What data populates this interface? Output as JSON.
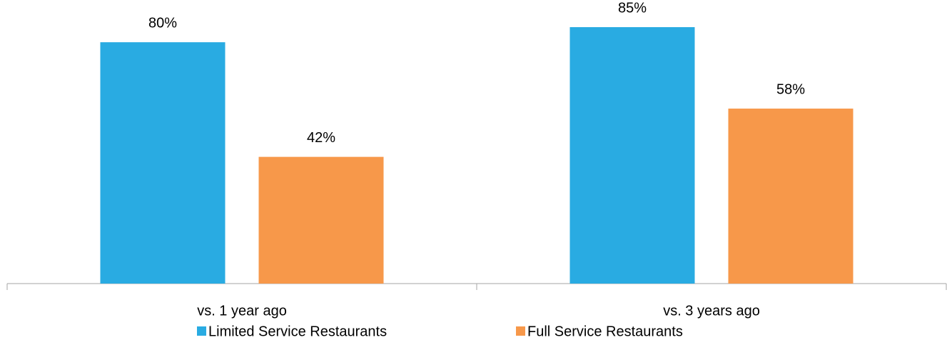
{
  "chart_data": {
    "type": "bar",
    "categories": [
      "vs. 1 year ago",
      "vs. 3 years ago"
    ],
    "series": [
      {
        "name": "Limited Service Restaurants",
        "color": "#29abe2",
        "values": [
          80,
          85
        ],
        "value_labels": [
          "80%",
          "85%"
        ]
      },
      {
        "name": "Full Service Restaurants",
        "color": "#f7984a",
        "values": [
          42,
          58
        ],
        "value_labels": [
          "42%",
          "58%"
        ]
      }
    ],
    "ylim": [
      0,
      94
    ],
    "legend": "bottom"
  }
}
